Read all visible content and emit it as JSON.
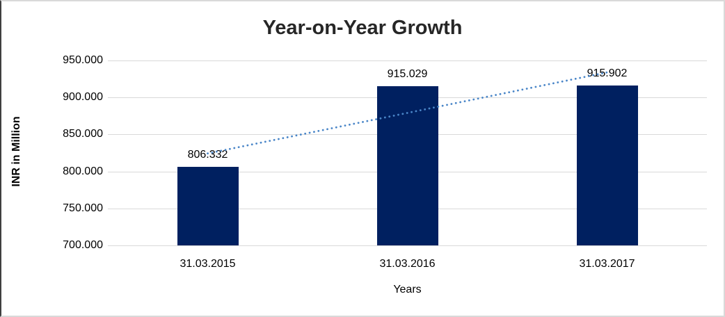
{
  "chart_data": {
    "type": "bar",
    "title": "Year-on-Year Growth",
    "categories": [
      "31.03.2015",
      "31.03.2016",
      "31.03.2017"
    ],
    "values": [
      806.332,
      915.029,
      915.902
    ],
    "value_labels": [
      "806.332",
      "915.029",
      "915.902"
    ],
    "xlabel": "Years",
    "ylabel": "INR in Million",
    "ylim": [
      700,
      950
    ],
    "ytick_step": 50,
    "ytick_labels": [
      "950.000",
      "900.000",
      "850.000",
      "800.000",
      "750.000",
      "700.000"
    ],
    "grid": true,
    "legend": false,
    "bar_color": "#002060",
    "gridline_color": "#d9d9d9",
    "text_color": "#000000",
    "title_color": "#262626",
    "trendline": {
      "type": "linear",
      "style": "dotted",
      "color": "#4a86c8"
    }
  }
}
